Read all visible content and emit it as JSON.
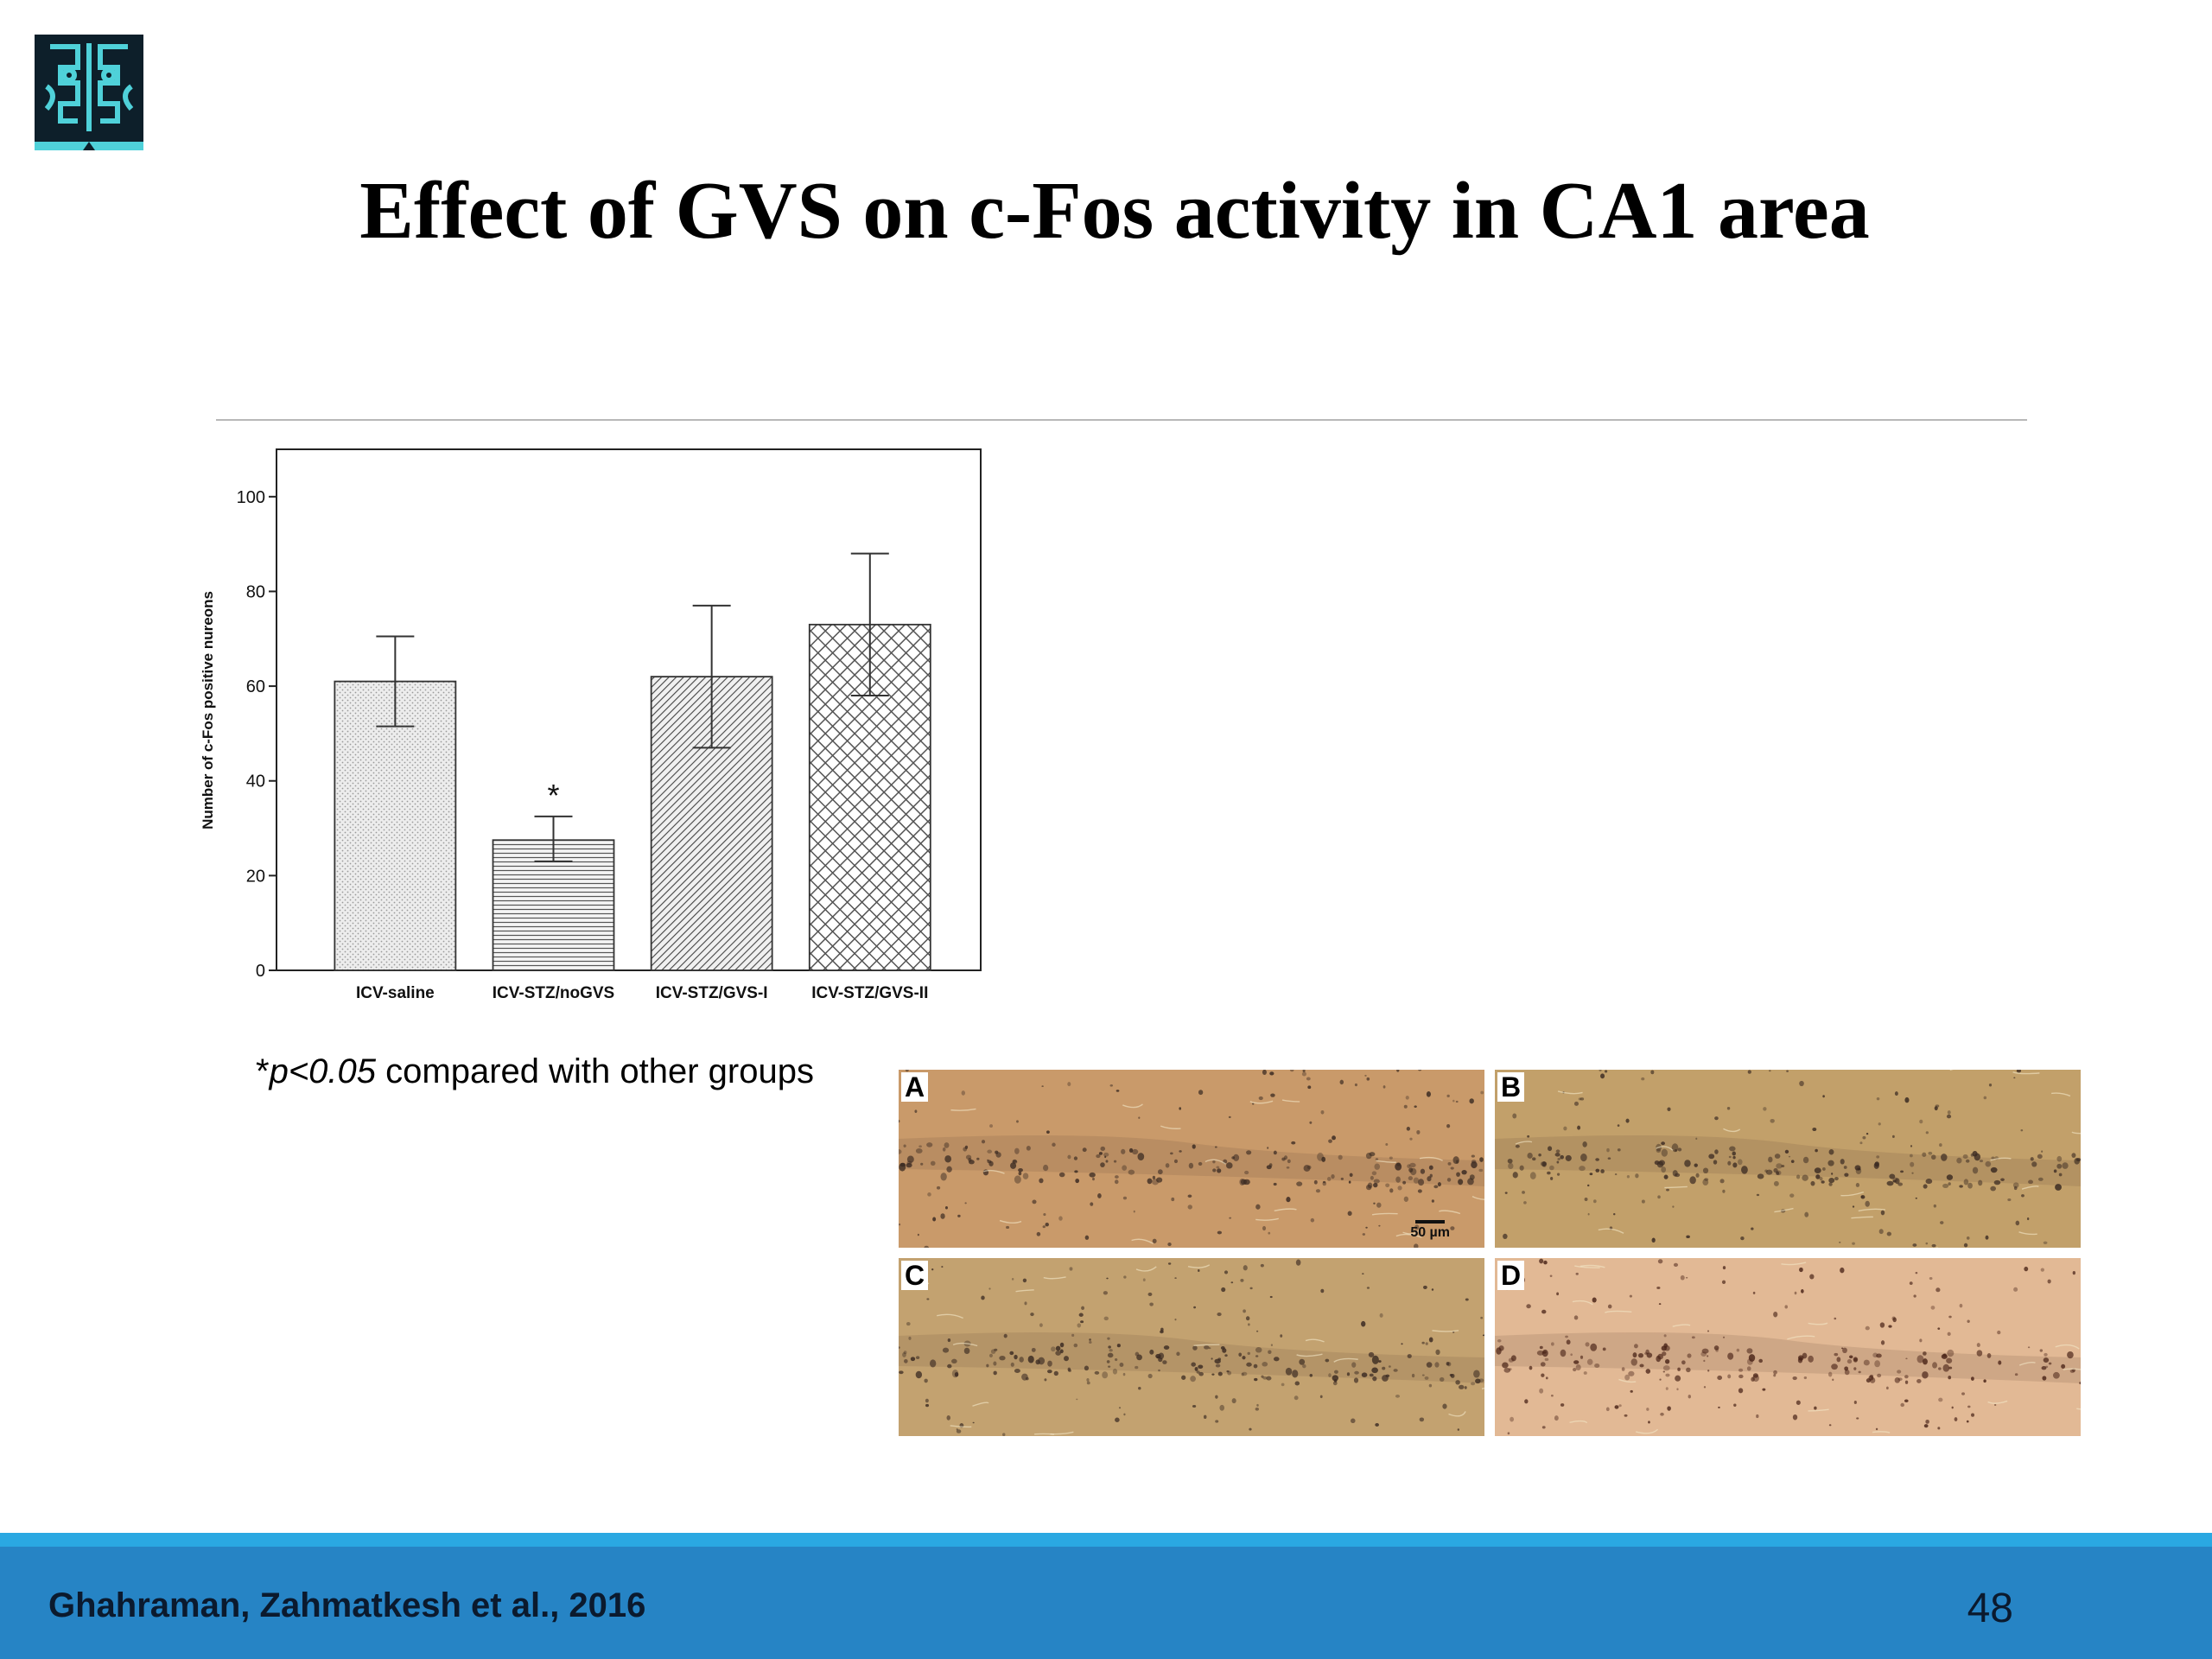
{
  "slide": {
    "title": "Effect of GVS on c-Fos activity in CA1 area",
    "footnote_symbol": "*",
    "footnote_p": "p<0.05",
    "footnote_text": " compared with other groups",
    "citation": "Ghahraman, Zahmatkesh et al., 2016",
    "page_number": "48"
  },
  "logo": {
    "icon": "ornamental-emblem-icon",
    "colors": {
      "dark": "#0d1f2a",
      "light": "#4fd1d9"
    }
  },
  "colors": {
    "footer": "#2684c5",
    "footer_stripe": "#2aa8e2",
    "title": "#000000"
  },
  "chart_data": {
    "type": "bar",
    "categories": [
      "ICV-saline",
      "ICV-STZ/noGVS",
      "ICV-STZ/GVS-I",
      "ICV-STZ/GVS-II"
    ],
    "values": [
      61,
      27.5,
      62,
      73
    ],
    "error_low": [
      51.5,
      23,
      47,
      58
    ],
    "error_high": [
      70.5,
      32.5,
      77,
      88
    ],
    "patterns": [
      "dots",
      "horizontal-lines",
      "diagonal-lines",
      "crosshatch"
    ],
    "annotations": [
      "",
      "*",
      "",
      ""
    ],
    "ylabel": "Number of c-Fos positive nureons",
    "xlabel": "",
    "ylim": [
      0,
      110
    ],
    "yticks": [
      0,
      20,
      40,
      60,
      80,
      100
    ],
    "grid": false
  },
  "micrographs": {
    "panels": [
      {
        "label": "A",
        "stain": "#c99a6a"
      },
      {
        "label": "B",
        "stain": "#c2a06a"
      },
      {
        "label": "C",
        "stain": "#c3a270"
      },
      {
        "label": "D",
        "stain": "#e2b995"
      }
    ],
    "scale_bar": "50 µm"
  }
}
